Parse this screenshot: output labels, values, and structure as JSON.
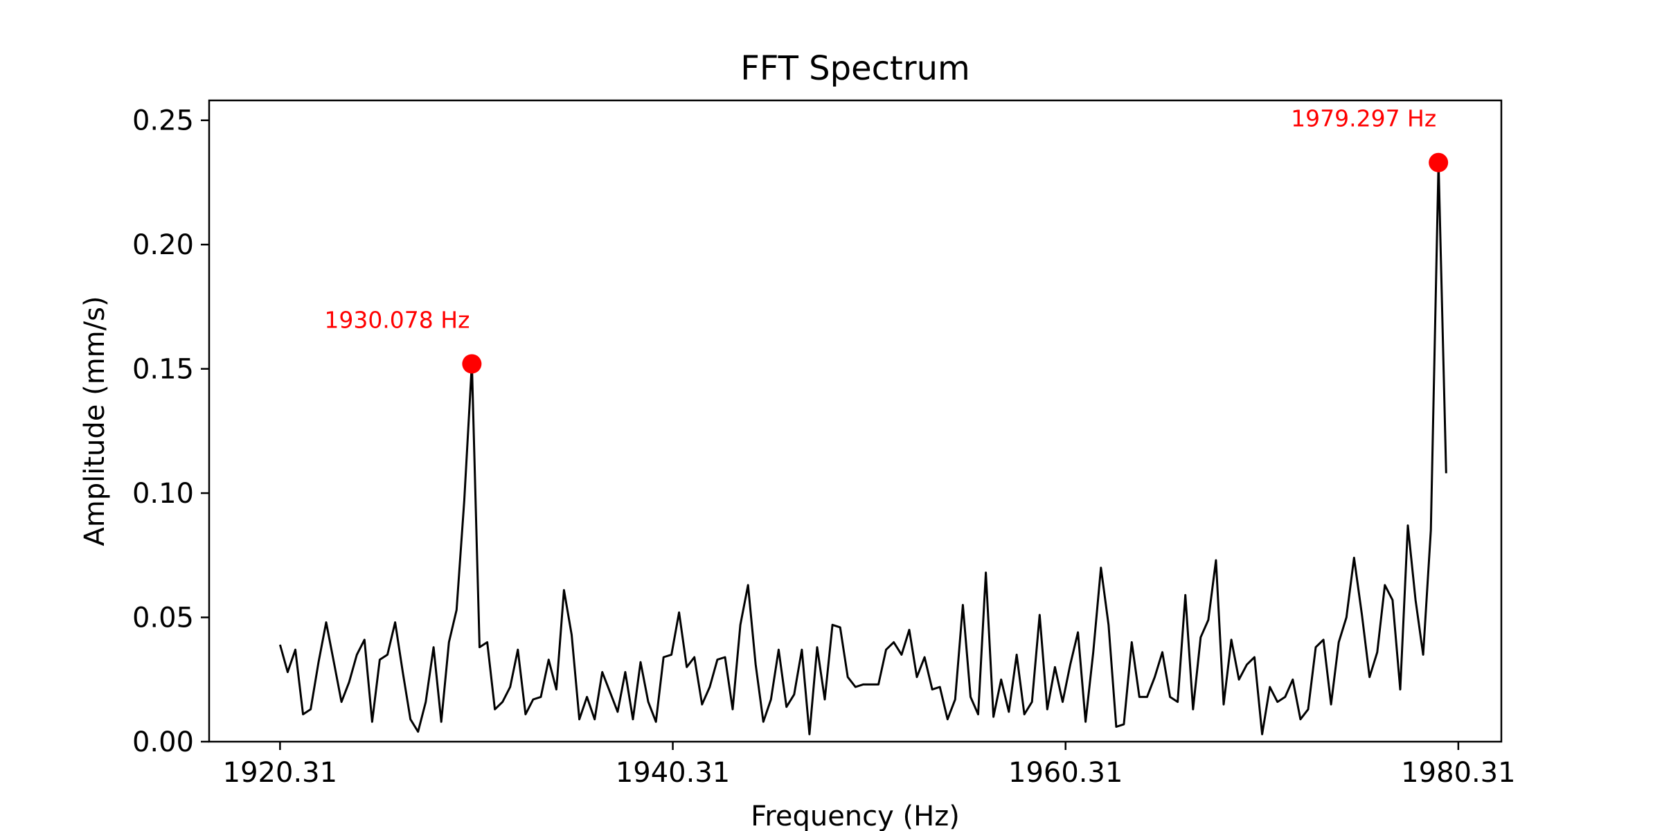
{
  "chart_data": {
    "type": "line",
    "title": "FFT Spectrum",
    "xlabel": "Frequency (Hz)",
    "ylabel": "Amplitude (mm/s)",
    "xlim": [
      1916.7,
      1982.5
    ],
    "ylim": [
      0.0,
      0.258
    ],
    "x_ticks": [
      1920.31,
      1940.31,
      1960.31,
      1980.31
    ],
    "x_tick_labels": [
      "1920.31",
      "1940.31",
      "1960.31",
      "1980.31"
    ],
    "y_ticks": [
      0.0,
      0.05,
      0.1,
      0.15,
      0.2,
      0.25
    ],
    "y_tick_labels": [
      "0.00",
      "0.05",
      "0.10",
      "0.15",
      "0.20",
      "0.25"
    ],
    "grid": false,
    "colors": {
      "line": "#000000",
      "peak": "#ff0000"
    },
    "series": [
      {
        "x": [
          1920.31,
          1920.7,
          1921.09,
          1921.48,
          1921.87,
          1922.27,
          1922.66,
          1923.05,
          1923.44,
          1923.83,
          1924.22,
          1924.61,
          1925.0,
          1925.39,
          1925.78,
          1926.17,
          1926.56,
          1926.95,
          1927.34,
          1927.73,
          1928.13,
          1928.52,
          1928.91,
          1929.3,
          1929.69,
          1930.08,
          1930.47,
          1930.86,
          1931.25,
          1931.64,
          1932.03,
          1932.42,
          1932.81,
          1933.2,
          1933.59,
          1933.99,
          1934.38,
          1934.77,
          1935.16,
          1935.55,
          1935.94,
          1936.33,
          1936.72,
          1937.11,
          1937.5,
          1937.89,
          1938.28,
          1938.67,
          1939.06,
          1939.45,
          1939.84,
          1940.24,
          1940.63,
          1941.02,
          1941.41,
          1941.8,
          1942.19,
          1942.58,
          1942.97,
          1943.36,
          1943.75,
          1944.14,
          1944.53,
          1944.92,
          1945.31,
          1945.7,
          1946.1,
          1946.49,
          1946.88,
          1947.27,
          1947.66,
          1948.05,
          1948.44,
          1948.83,
          1949.22,
          1949.61,
          1950.0,
          1950.39,
          1950.78,
          1951.17,
          1951.56,
          1951.96,
          1952.35,
          1952.74,
          1953.13,
          1953.52,
          1953.91,
          1954.3,
          1954.69,
          1955.08,
          1955.47,
          1955.86,
          1956.25,
          1956.64,
          1957.03,
          1957.42,
          1957.82,
          1958.21,
          1958.6,
          1958.99,
          1959.38,
          1959.77,
          1960.16,
          1960.55,
          1960.94,
          1961.33,
          1961.72,
          1962.11,
          1962.5,
          1962.89,
          1963.28,
          1963.68,
          1964.07,
          1964.46,
          1964.85,
          1965.24,
          1965.63,
          1966.02,
          1966.41,
          1966.8,
          1967.19,
          1967.58,
          1967.97,
          1968.36,
          1968.75,
          1969.14,
          1969.54,
          1969.93,
          1970.32,
          1970.71,
          1971.1,
          1971.49,
          1971.88,
          1972.27,
          1972.66,
          1973.05,
          1973.44,
          1973.83,
          1974.22,
          1974.61,
          1975.0,
          1975.4,
          1975.79,
          1976.18,
          1976.57,
          1976.96,
          1977.35,
          1977.74,
          1978.13,
          1978.52,
          1978.91,
          1979.3,
          1979.69
        ],
        "y": [
          0.039,
          0.028,
          0.037,
          0.011,
          0.013,
          0.032,
          0.048,
          0.032,
          0.016,
          0.024,
          0.035,
          0.041,
          0.008,
          0.033,
          0.035,
          0.048,
          0.028,
          0.009,
          0.004,
          0.016,
          0.038,
          0.008,
          0.04,
          0.053,
          0.097,
          0.152,
          0.038,
          0.04,
          0.013,
          0.016,
          0.022,
          0.037,
          0.011,
          0.017,
          0.018,
          0.033,
          0.021,
          0.061,
          0.043,
          0.009,
          0.018,
          0.009,
          0.028,
          0.02,
          0.012,
          0.028,
          0.009,
          0.032,
          0.016,
          0.008,
          0.034,
          0.035,
          0.052,
          0.03,
          0.034,
          0.015,
          0.022,
          0.033,
          0.034,
          0.013,
          0.047,
          0.063,
          0.031,
          0.008,
          0.017,
          0.037,
          0.014,
          0.019,
          0.037,
          0.003,
          0.038,
          0.017,
          0.047,
          0.046,
          0.026,
          0.022,
          0.023,
          0.023,
          0.023,
          0.037,
          0.04,
          0.035,
          0.045,
          0.026,
          0.034,
          0.021,
          0.022,
          0.009,
          0.017,
          0.055,
          0.018,
          0.011,
          0.068,
          0.01,
          0.025,
          0.012,
          0.035,
          0.011,
          0.016,
          0.051,
          0.013,
          0.03,
          0.016,
          0.031,
          0.044,
          0.008,
          0.036,
          0.07,
          0.047,
          0.006,
          0.007,
          0.04,
          0.018,
          0.018,
          0.026,
          0.036,
          0.018,
          0.016,
          0.059,
          0.013,
          0.042,
          0.049,
          0.073,
          0.015,
          0.041,
          0.025,
          0.031,
          0.034,
          0.003,
          0.022,
          0.016,
          0.018,
          0.025,
          0.009,
          0.013,
          0.038,
          0.041,
          0.015,
          0.04,
          0.05,
          0.074,
          0.051,
          0.026,
          0.036,
          0.063,
          0.057,
          0.021,
          0.087,
          0.057,
          0.035,
          0.085,
          0.233,
          0.108
        ]
      }
    ],
    "peaks": [
      {
        "x": 1930.078,
        "y": 0.152,
        "label": "1930.078 Hz"
      },
      {
        "x": 1979.297,
        "y": 0.233,
        "label": "1979.297 Hz"
      }
    ]
  }
}
